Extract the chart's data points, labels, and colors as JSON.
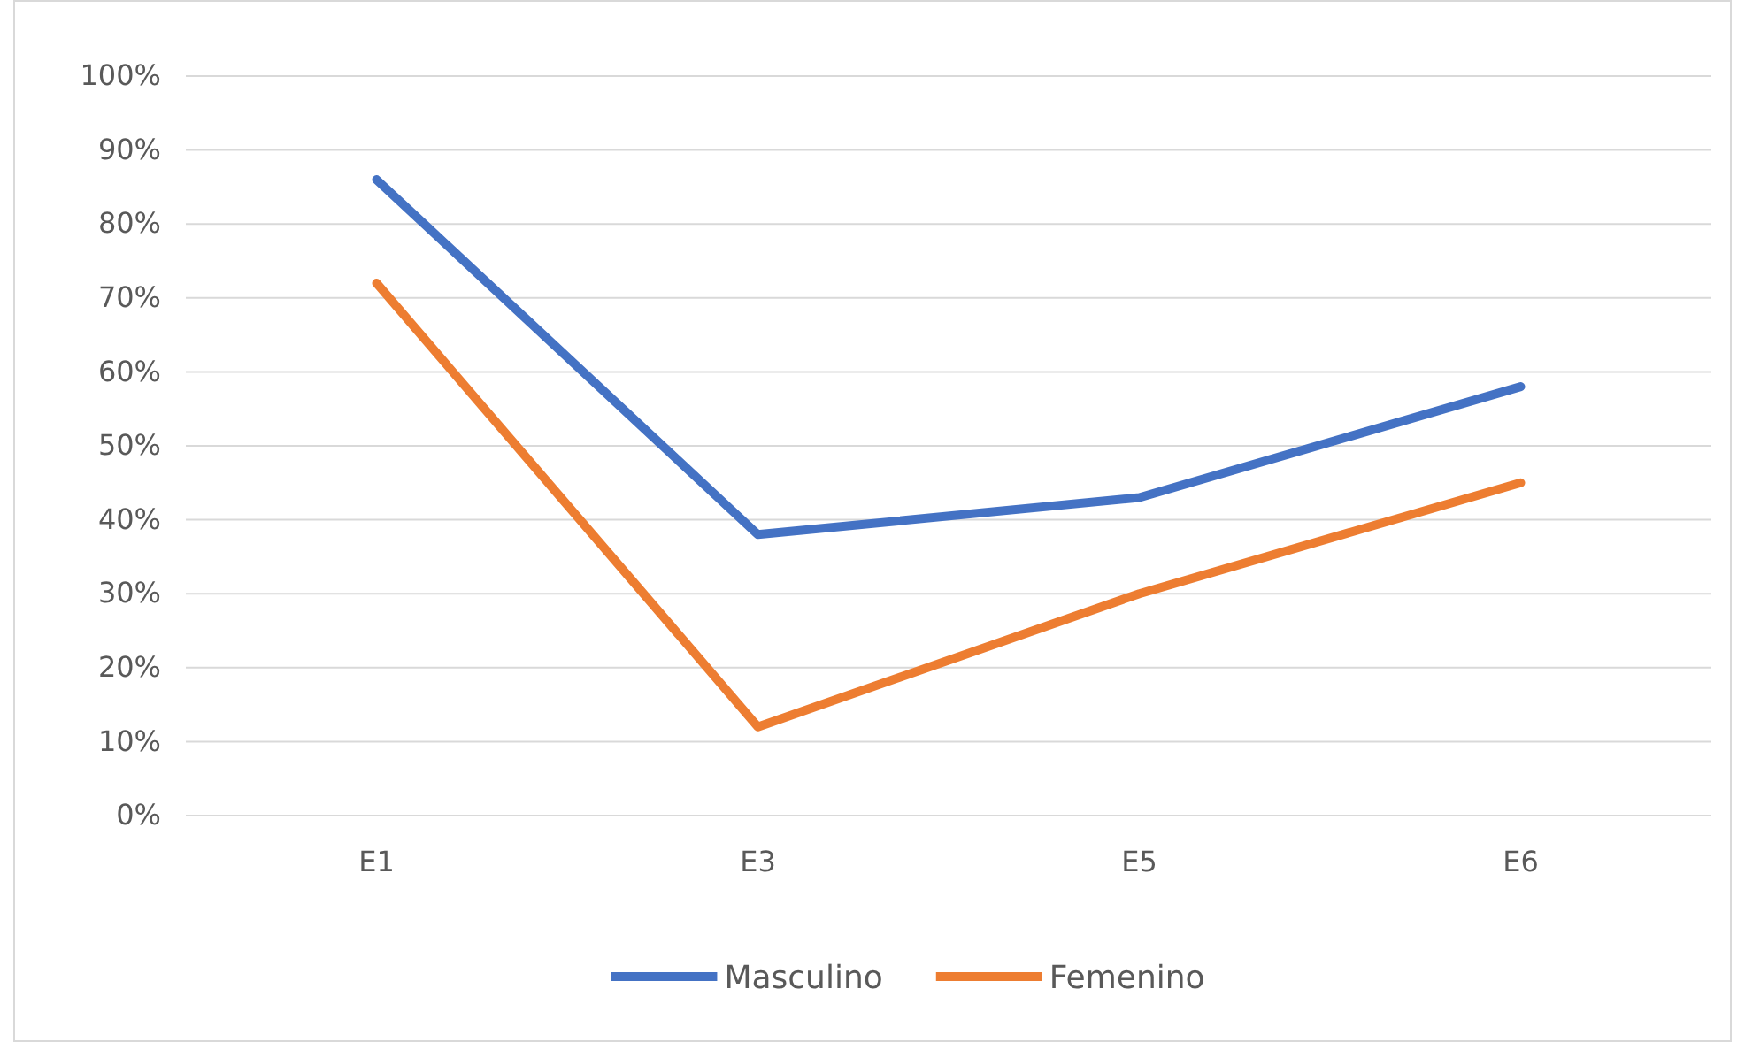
{
  "chart_data": {
    "type": "line",
    "categories": [
      "E1",
      "E3",
      "E5",
      "E6"
    ],
    "series": [
      {
        "name": "Masculino",
        "color": "#4472c4",
        "values": [
          86,
          38,
          43,
          58
        ]
      },
      {
        "name": "Femenino",
        "color": "#ed7d31",
        "values": [
          72,
          12,
          30,
          45
        ]
      }
    ],
    "ylim": [
      0,
      100
    ],
    "yticks": [
      {
        "value": 0,
        "label": "0%"
      },
      {
        "value": 10,
        "label": "10%"
      },
      {
        "value": 20,
        "label": "20%"
      },
      {
        "value": 30,
        "label": "30%"
      },
      {
        "value": 40,
        "label": "40%"
      },
      {
        "value": 50,
        "label": "50%"
      },
      {
        "value": 60,
        "label": "60%"
      },
      {
        "value": 70,
        "label": "70%"
      },
      {
        "value": 80,
        "label": "80%"
      },
      {
        "value": 90,
        "label": "90%"
      },
      {
        "value": 100,
        "label": "100%"
      }
    ],
    "grid": "y",
    "legend": "bottom",
    "marker": "none",
    "line_style": "solid"
  }
}
